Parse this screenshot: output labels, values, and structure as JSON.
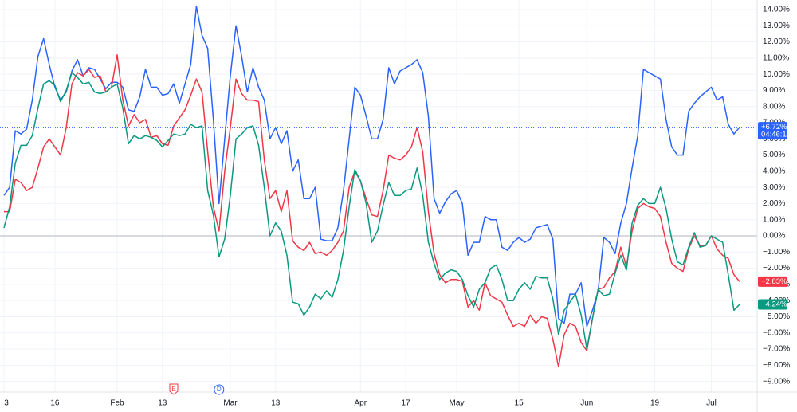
{
  "chart_data": {
    "type": "line",
    "categories": [
      "3",
      null,
      null,
      null,
      null,
      null,
      null,
      null,
      null,
      "16",
      null,
      null,
      null,
      null,
      null,
      null,
      null,
      null,
      null,
      null,
      "Feb",
      null,
      null,
      null,
      null,
      null,
      null,
      null,
      "13",
      null,
      null,
      null,
      null,
      null,
      null,
      null,
      null,
      null,
      null,
      null,
      "Mar",
      null,
      null,
      null,
      null,
      null,
      null,
      null,
      "13",
      null,
      null,
      null,
      null,
      null,
      null,
      null,
      null,
      null,
      null,
      null,
      null,
      null,
      null,
      "Apr",
      null,
      null,
      null,
      null,
      null,
      null,
      null,
      "17",
      null,
      null,
      null,
      null,
      null,
      null,
      null,
      null,
      "May",
      null,
      null,
      null,
      null,
      null,
      null,
      null,
      null,
      null,
      null,
      "15",
      null,
      null,
      null,
      null,
      null,
      null,
      null,
      null,
      null,
      null,
      null,
      "Jun",
      null,
      null,
      null,
      null,
      null,
      null,
      null,
      null,
      null,
      null,
      null,
      "19",
      null,
      null,
      null,
      null,
      null,
      null,
      null,
      null,
      null,
      "Jul",
      null,
      null,
      null,
      null,
      null
    ],
    "series": [
      {
        "color": "#2962ff",
        "last_label": "+6.72%",
        "countdown": "04:46:11",
        "values": [
          2.5,
          3.0,
          6.5,
          6.3,
          6.6,
          8.4,
          11.1,
          12.2,
          10.6,
          9.2,
          8.4,
          8.9,
          10.2,
          10.9,
          9.9,
          10.4,
          10.3,
          9.7,
          9.1,
          9.5,
          9.5,
          9.2,
          7.8,
          7.7,
          8.6,
          10.3,
          9.2,
          9.2,
          8.7,
          8.8,
          9.4,
          8.2,
          9.4,
          10.6,
          14.2,
          12.4,
          11.6,
          7.2,
          2.0,
          6.0,
          9.9,
          13.0,
          11.1,
          8.9,
          10.4,
          9.2,
          8.4,
          6.0,
          6.7,
          5.7,
          6.5,
          4.0,
          4.7,
          2.3,
          2.3,
          3.0,
          -0.2,
          -0.3,
          -0.3,
          0.5,
          2.8,
          6.0,
          9.2,
          8.7,
          7.4,
          6.0,
          6.0,
          7.2,
          10.4,
          9.4,
          10.2,
          10.4,
          10.6,
          10.9,
          10.1,
          7.4,
          2.3,
          1.4,
          2.1,
          2.6,
          2.8,
          2.0,
          -1.2,
          -0.4,
          -0.4,
          1.2,
          1.0,
          1.0,
          -0.7,
          -0.9,
          -0.4,
          -0.1,
          -0.4,
          -0.2,
          0.5,
          0.6,
          0.7,
          -0.2,
          -5.1,
          -5.4,
          -3.6,
          -3.6,
          -2.9,
          -5.6,
          -4.6,
          -3.4,
          -0.1,
          -0.4,
          -1.1,
          0.8,
          2.0,
          4.2,
          6.2,
          10.3,
          10.1,
          9.9,
          9.7,
          7.2,
          5.5,
          5.0,
          5.0,
          7.7,
          8.2,
          8.6,
          8.9,
          9.2,
          8.4,
          8.6,
          6.9,
          6.3,
          6.72
        ]
      },
      {
        "color": "#f23645",
        "last_label": "−2.83%",
        "values": [
          1.5,
          1.5,
          3.5,
          3.3,
          2.8,
          3.0,
          4.2,
          5.5,
          6.0,
          5.5,
          5.0,
          6.7,
          9.4,
          10.1,
          9.9,
          10.3,
          9.8,
          9.9,
          8.9,
          9.2,
          11.2,
          8.4,
          6.8,
          7.5,
          7.0,
          7.2,
          6.1,
          6.2,
          5.7,
          5.6,
          6.8,
          7.3,
          7.8,
          8.7,
          9.7,
          8.9,
          5.2,
          1.8,
          0.3,
          4.0,
          6.7,
          9.7,
          8.8,
          8.4,
          8.4,
          8.3,
          4.7,
          2.3,
          2.8,
          1.5,
          2.8,
          -0.3,
          -0.7,
          -0.9,
          -0.4,
          -1.1,
          -1.0,
          -1.2,
          -0.9,
          -0.4,
          0.3,
          3.0,
          4.0,
          3.4,
          2.3,
          1.3,
          1.2,
          2.8,
          5.0,
          4.8,
          4.7,
          5.0,
          5.5,
          6.7,
          5.2,
          1.5,
          -1.1,
          -2.4,
          -2.9,
          -2.7,
          -2.7,
          -2.8,
          -4.4,
          -4.0,
          -4.6,
          -2.9,
          -3.7,
          -3.9,
          -4.1,
          -4.9,
          -5.6,
          -5.4,
          -5.6,
          -4.9,
          -5.4,
          -5.0,
          -5.1,
          -6.4,
          -8.1,
          -6.1,
          -5.4,
          -5.6,
          -6.6,
          -7.1,
          -5.1,
          -3.3,
          -3.2,
          -2.6,
          -2.2,
          -0.7,
          -1.9,
          0.3,
          1.7,
          2.0,
          1.8,
          1.7,
          1.2,
          -0.4,
          -1.7,
          -2.0,
          -2.2,
          -0.8,
          0.0,
          -0.6,
          -0.6,
          0.0,
          -0.8,
          -1.2,
          -1.4,
          -2.4,
          -2.83
        ]
      },
      {
        "color": "#089981",
        "last_label": "−4.24%",
        "values": [
          0.5,
          1.8,
          4.5,
          5.6,
          5.6,
          6.2,
          7.9,
          9.4,
          9.6,
          9.3,
          8.3,
          9.0,
          10.1,
          9.8,
          9.4,
          9.5,
          8.9,
          8.8,
          8.9,
          9.2,
          9.4,
          7.9,
          5.7,
          6.2,
          6.0,
          6.2,
          6.1,
          5.9,
          5.5,
          5.9,
          6.3,
          6.2,
          6.3,
          6.9,
          6.7,
          6.8,
          2.8,
          1.3,
          -1.3,
          -0.2,
          2.5,
          6.0,
          6.3,
          6.7,
          6.8,
          5.6,
          3.0,
          0.0,
          0.8,
          0.3,
          -1.2,
          -4.1,
          -4.2,
          -4.9,
          -4.4,
          -3.6,
          -3.9,
          -3.4,
          -3.8,
          -2.7,
          -0.9,
          1.8,
          4.1,
          3.4,
          2.0,
          -0.4,
          0.3,
          1.9,
          3.3,
          2.5,
          2.5,
          2.8,
          2.9,
          4.2,
          2.5,
          -0.4,
          -1.7,
          -2.7,
          -2.3,
          -2.1,
          -2.2,
          -2.7,
          -3.7,
          -4.4,
          -3.3,
          -2.9,
          -2.0,
          -1.8,
          -2.7,
          -4.0,
          -4.0,
          -3.3,
          -2.9,
          -3.3,
          -2.5,
          -2.6,
          -2.6,
          -3.9,
          -6.1,
          -4.6,
          -4.1,
          -3.6,
          -4.9,
          -7.0,
          -5.1,
          -3.3,
          -3.7,
          -3.6,
          -2.3,
          -1.2,
          -2.1,
          0.8,
          1.9,
          2.3,
          2.0,
          2.0,
          3.0,
          1.7,
          -0.2,
          -1.6,
          -1.8,
          -0.7,
          0.2,
          -0.7,
          -0.6,
          0.0,
          -0.2,
          -0.4,
          -2.4,
          -4.6,
          -4.24
        ]
      }
    ],
    "events": [
      {
        "label": "E",
        "color": "#f23645",
        "x": 30
      },
      {
        "label": "D",
        "color": "#2962ff",
        "x": 38
      }
    ],
    "ylim": [
      -9.66,
      14.59
    ],
    "yticks": [
      {
        "value": 14,
        "label": "14.00%"
      },
      {
        "value": 13,
        "label": "13.00%"
      },
      {
        "value": 12,
        "label": "12.00%"
      },
      {
        "value": 11,
        "label": "11.00%"
      },
      {
        "value": 10,
        "label": "10.00%"
      },
      {
        "value": 9,
        "label": "9.00%"
      },
      {
        "value": 8,
        "label": "8.00%"
      },
      {
        "value": 7,
        "label": "7.00%"
      },
      {
        "value": 6,
        "label": "6.00%"
      },
      {
        "value": 5,
        "label": "5.00%"
      },
      {
        "value": 4,
        "label": "4.00%"
      },
      {
        "value": 3,
        "label": "3.00%"
      },
      {
        "value": 2,
        "label": "2.00%"
      },
      {
        "value": 1,
        "label": "1.00%"
      },
      {
        "value": 0,
        "label": "0.00%"
      },
      {
        "value": -1,
        "label": "−1.00%"
      },
      {
        "value": -2,
        "label": "−2.00%"
      },
      {
        "value": -3,
        "label": "−3.00%"
      },
      {
        "value": -4,
        "label": "−4.00%"
      },
      {
        "value": -5,
        "label": "−5.00%"
      },
      {
        "value": -6,
        "label": "−6.00%"
      },
      {
        "value": -7,
        "label": "−7.00%"
      },
      {
        "value": -8,
        "label": "−8.00%"
      },
      {
        "value": -9,
        "label": "−9.00%"
      }
    ],
    "grid": true
  }
}
